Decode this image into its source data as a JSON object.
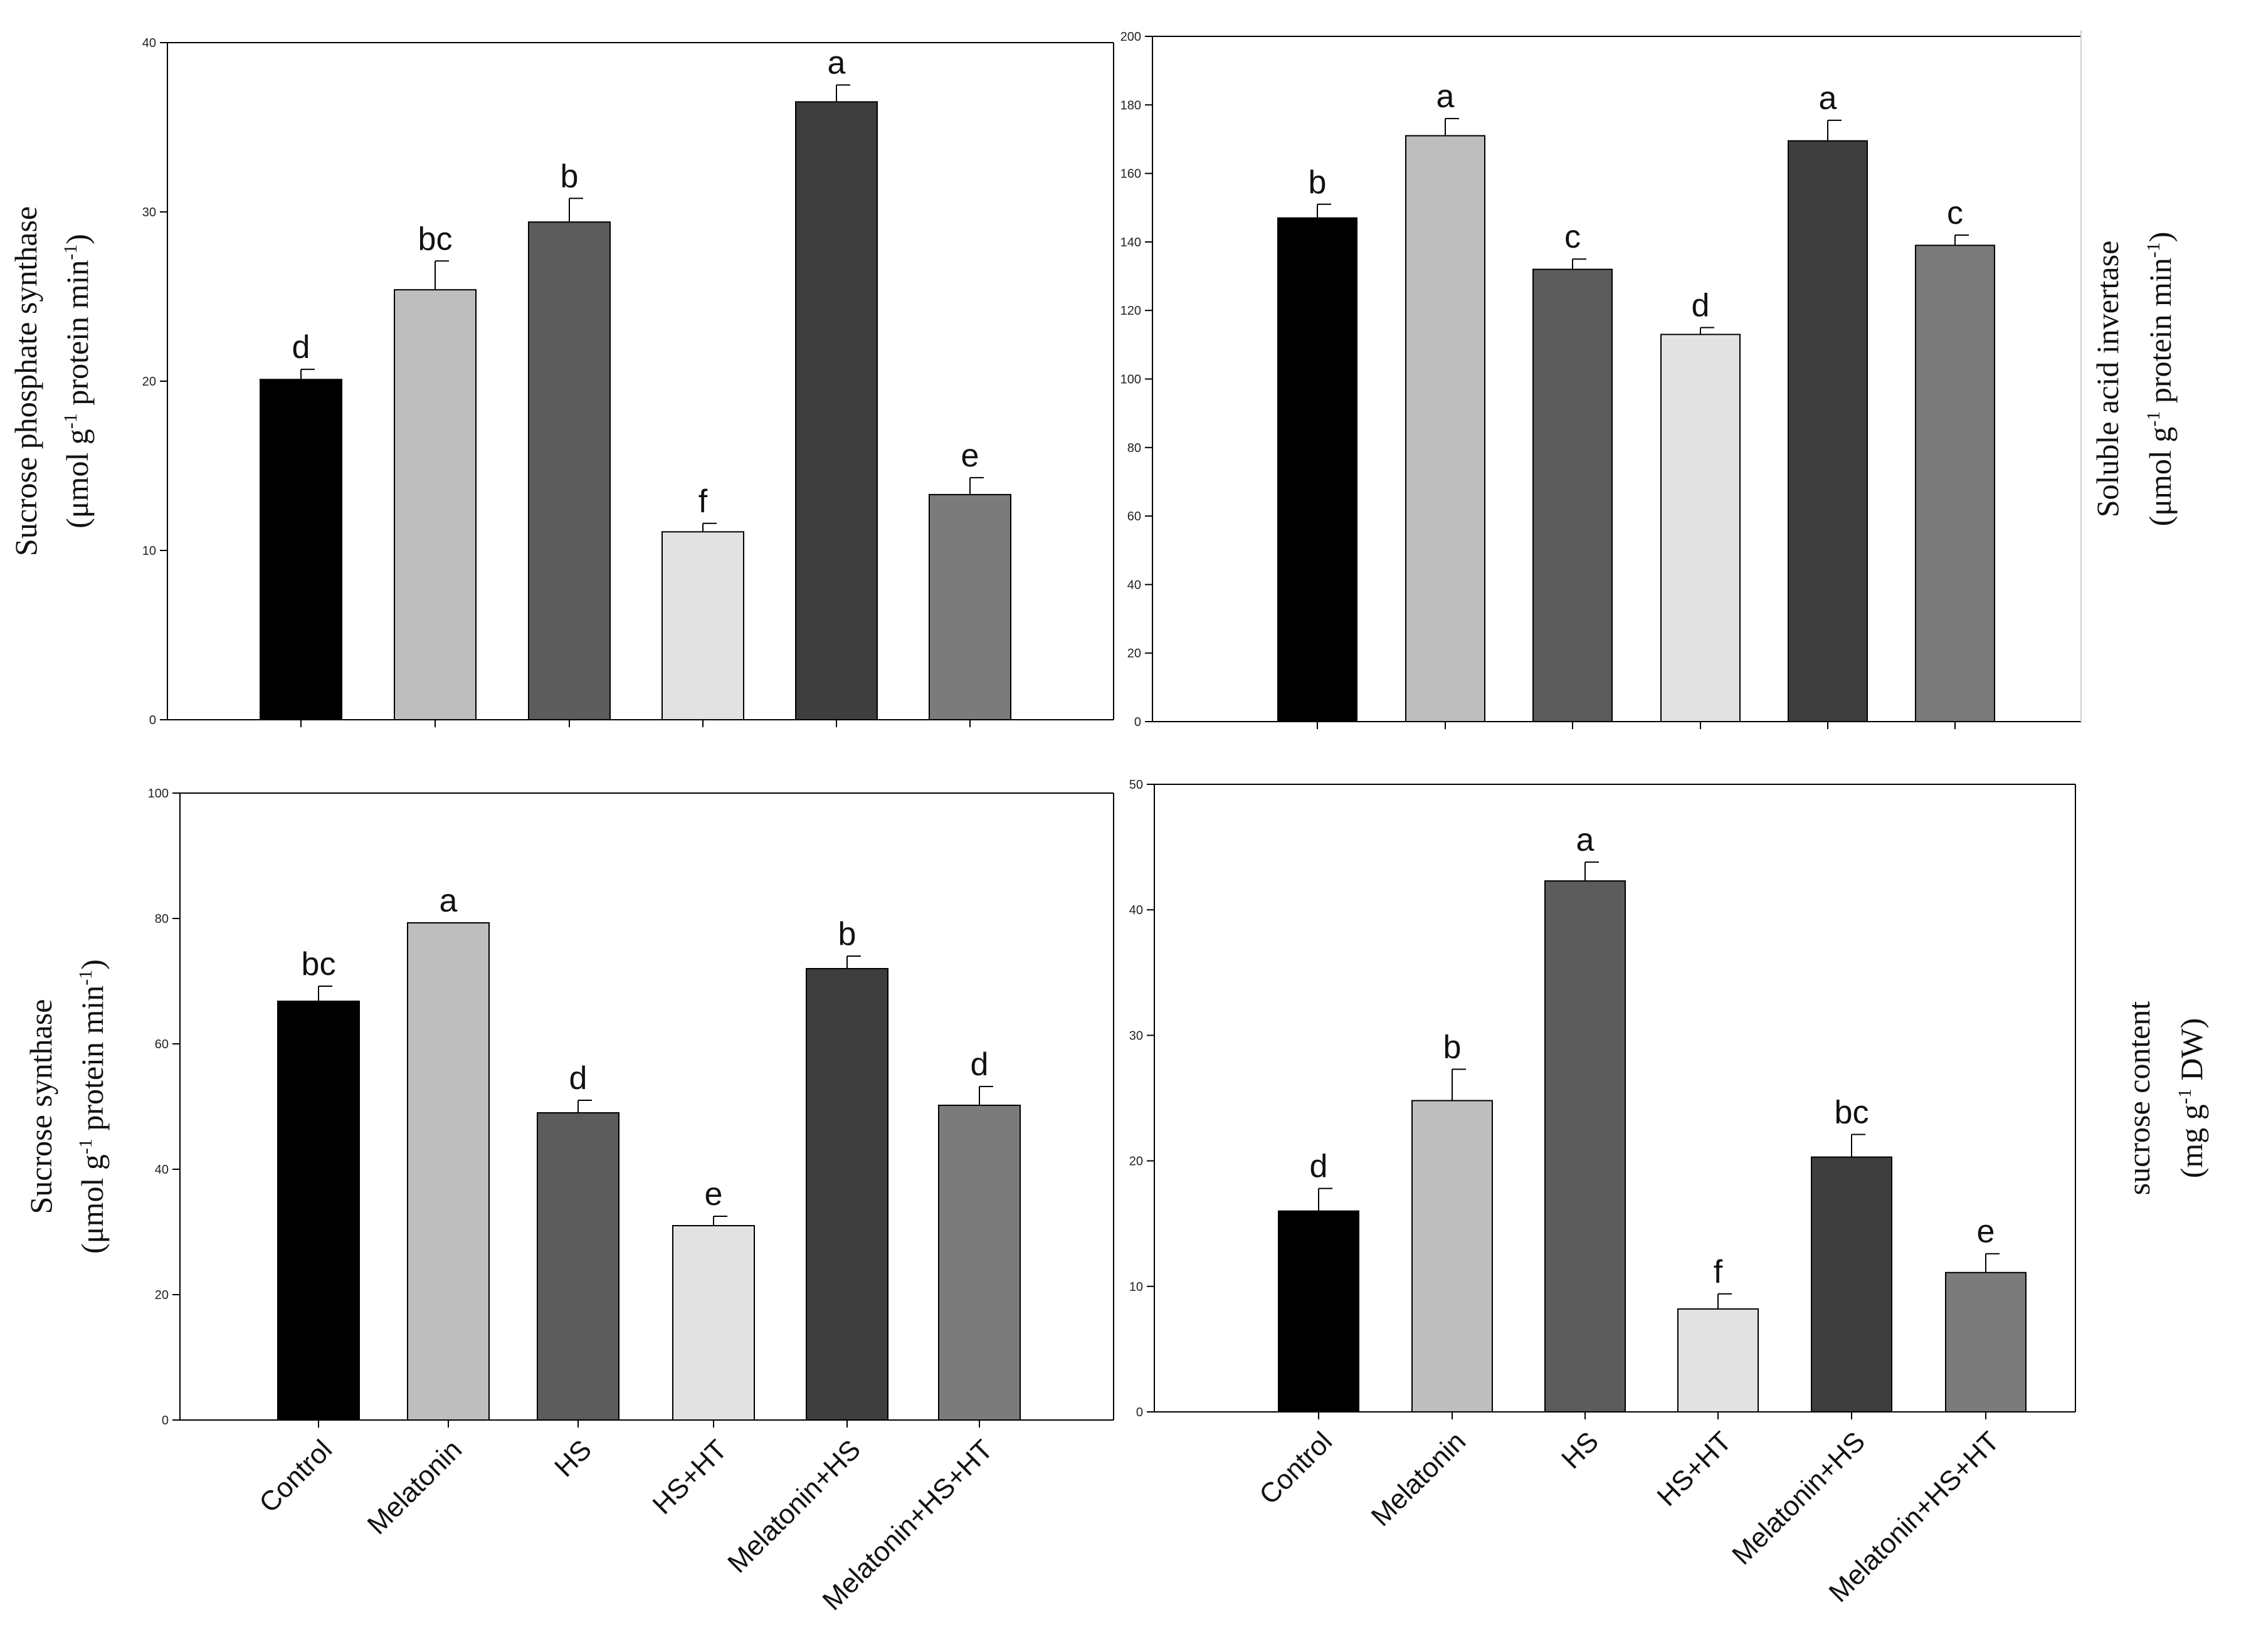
{
  "chart_data": [
    {
      "id": "sps",
      "type": "bar",
      "categories": [
        "Control",
        "Melatonin",
        "HS",
        "HS+HT",
        "Melatonin+HS",
        "Melatonin+HS+HT"
      ],
      "values": [
        20.1,
        25.4,
        29.4,
        11.1,
        36.5,
        13.3
      ],
      "errors": [
        0.6,
        1.7,
        1.4,
        0.5,
        1.0,
        1.0
      ],
      "significance": [
        "d",
        "bc",
        "b",
        "f",
        "a",
        "e"
      ],
      "colors": [
        "#000000",
        "#bebebe",
        "#5c5c5c",
        "#e2e2e2",
        "#3e3e3e",
        "#7b7b7b"
      ],
      "ylim": [
        0,
        40
      ],
      "yticks": [
        0,
        10,
        20,
        30,
        40
      ],
      "ylabel_line1": "Sucrose phosphate synthase",
      "ylabel_line2": [
        "(μmol g",
        "-1",
        " protein min",
        "-1",
        ")"
      ],
      "show_category_labels": false
    },
    {
      "id": "sai",
      "type": "bar",
      "categories": [
        "Control",
        "Melatonin",
        "HS",
        "HS+HT",
        "Melatonin+HS",
        "Melatonin+HS+HT"
      ],
      "values": [
        147,
        171,
        132,
        113,
        169.5,
        139
      ],
      "errors": [
        4,
        5,
        3,
        2,
        6,
        3
      ],
      "significance": [
        "b",
        "a",
        "c",
        "d",
        "a",
        "c"
      ],
      "colors": [
        "#000000",
        "#bebebe",
        "#5c5c5c",
        "#e2e2e2",
        "#3e3e3e",
        "#7b7b7b"
      ],
      "ylim": [
        0,
        200
      ],
      "yticks": [
        0,
        20,
        40,
        60,
        80,
        100,
        120,
        140,
        160,
        180,
        200
      ],
      "ylabel_line1": "Soluble acid invertase",
      "ylabel_line2": [
        "(μmol g",
        "-1",
        " protein min",
        "-1",
        ")"
      ],
      "show_category_labels": false
    },
    {
      "id": "ss",
      "type": "bar",
      "categories": [
        "Control",
        "Melatonin",
        "HS",
        "HS+HT",
        "Melatonin+HS",
        "Melatonin+HS+HT"
      ],
      "values": [
        66.8,
        79.3,
        49.0,
        31.0,
        72.0,
        50.2
      ],
      "errors": [
        2.4,
        0.0,
        2.0,
        1.5,
        2.0,
        3.0
      ],
      "significance": [
        "bc",
        "a",
        "d",
        "e",
        "b",
        "d"
      ],
      "colors": [
        "#000000",
        "#bebebe",
        "#5c5c5c",
        "#e2e2e2",
        "#3e3e3e",
        "#7b7b7b"
      ],
      "ylim": [
        0,
        100
      ],
      "yticks": [
        0,
        20,
        40,
        60,
        80,
        100
      ],
      "ylabel_line1": "Sucrose  synthase",
      "ylabel_line2": [
        "(μmol g",
        "-1",
        " protein min",
        "-1",
        ")"
      ],
      "show_category_labels": true
    },
    {
      "id": "sc",
      "type": "bar",
      "categories": [
        "Control",
        "Melatonin",
        "HS",
        "HS+HT",
        "Melatonin+HS",
        "Melatonin+HS+HT"
      ],
      "values": [
        16.0,
        24.8,
        42.3,
        8.2,
        20.3,
        11.1
      ],
      "errors": [
        1.8,
        2.5,
        1.5,
        1.2,
        1.8,
        1.5
      ],
      "significance": [
        "d",
        "b",
        "a",
        "f",
        "bc",
        "e"
      ],
      "colors": [
        "#000000",
        "#bebebe",
        "#5c5c5c",
        "#e2e2e2",
        "#3e3e3e",
        "#7b7b7b"
      ],
      "ylim": [
        0,
        50
      ],
      "yticks": [
        0,
        10,
        20,
        30,
        40,
        50
      ],
      "ylabel_line1": "sucrose content",
      "ylabel_line2": [
        "(mg g",
        "-1",
        " DW)"
      ],
      "show_category_labels": true
    }
  ]
}
